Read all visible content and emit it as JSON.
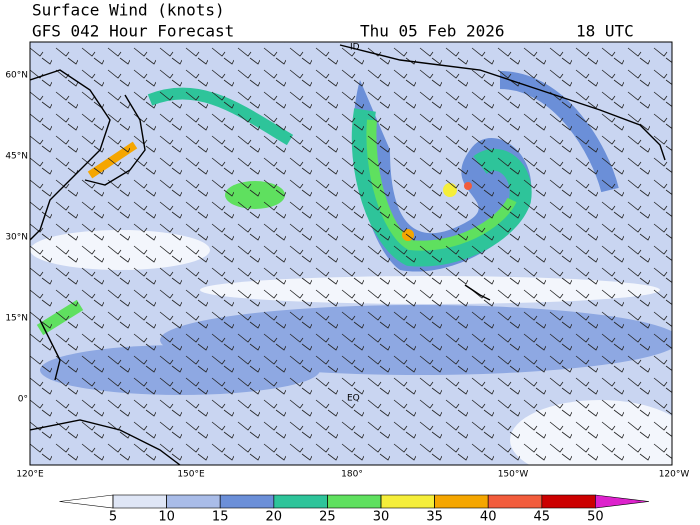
{
  "header": {
    "title": "Surface Wind (knots)",
    "subtitle": "GFS 042 Hour Forecast",
    "date": "Thu 05 Feb 2026",
    "time": "18 UTC"
  },
  "map": {
    "lat_labels": [
      {
        "value": 60,
        "label": "60°N"
      },
      {
        "value": 45,
        "label": "45°N"
      },
      {
        "value": 30,
        "label": "30°N"
      },
      {
        "value": 15,
        "label": "15°N"
      },
      {
        "value": 0,
        "label": "0°"
      }
    ],
    "lon_labels": [
      {
        "value": 120,
        "label": "120°E"
      },
      {
        "value": 150,
        "label": "150°E"
      },
      {
        "value": 180,
        "label": "180°"
      },
      {
        "value": 210,
        "label": "150°W"
      },
      {
        "value": 240,
        "label": "120°W"
      }
    ],
    "place_labels": [
      "ID",
      "EQ"
    ]
  },
  "colorbar": {
    "ticks": [
      5,
      10,
      15,
      20,
      25,
      30,
      35,
      40,
      45,
      50
    ],
    "colors": [
      "#ffffff",
      "#dfe6f6",
      "#a9bce8",
      "#6b8fd8",
      "#2ec49a",
      "#5fe05f",
      "#f5ee3a",
      "#f5a600",
      "#f25c3c",
      "#cc0000",
      "#dd22cc"
    ]
  }
}
